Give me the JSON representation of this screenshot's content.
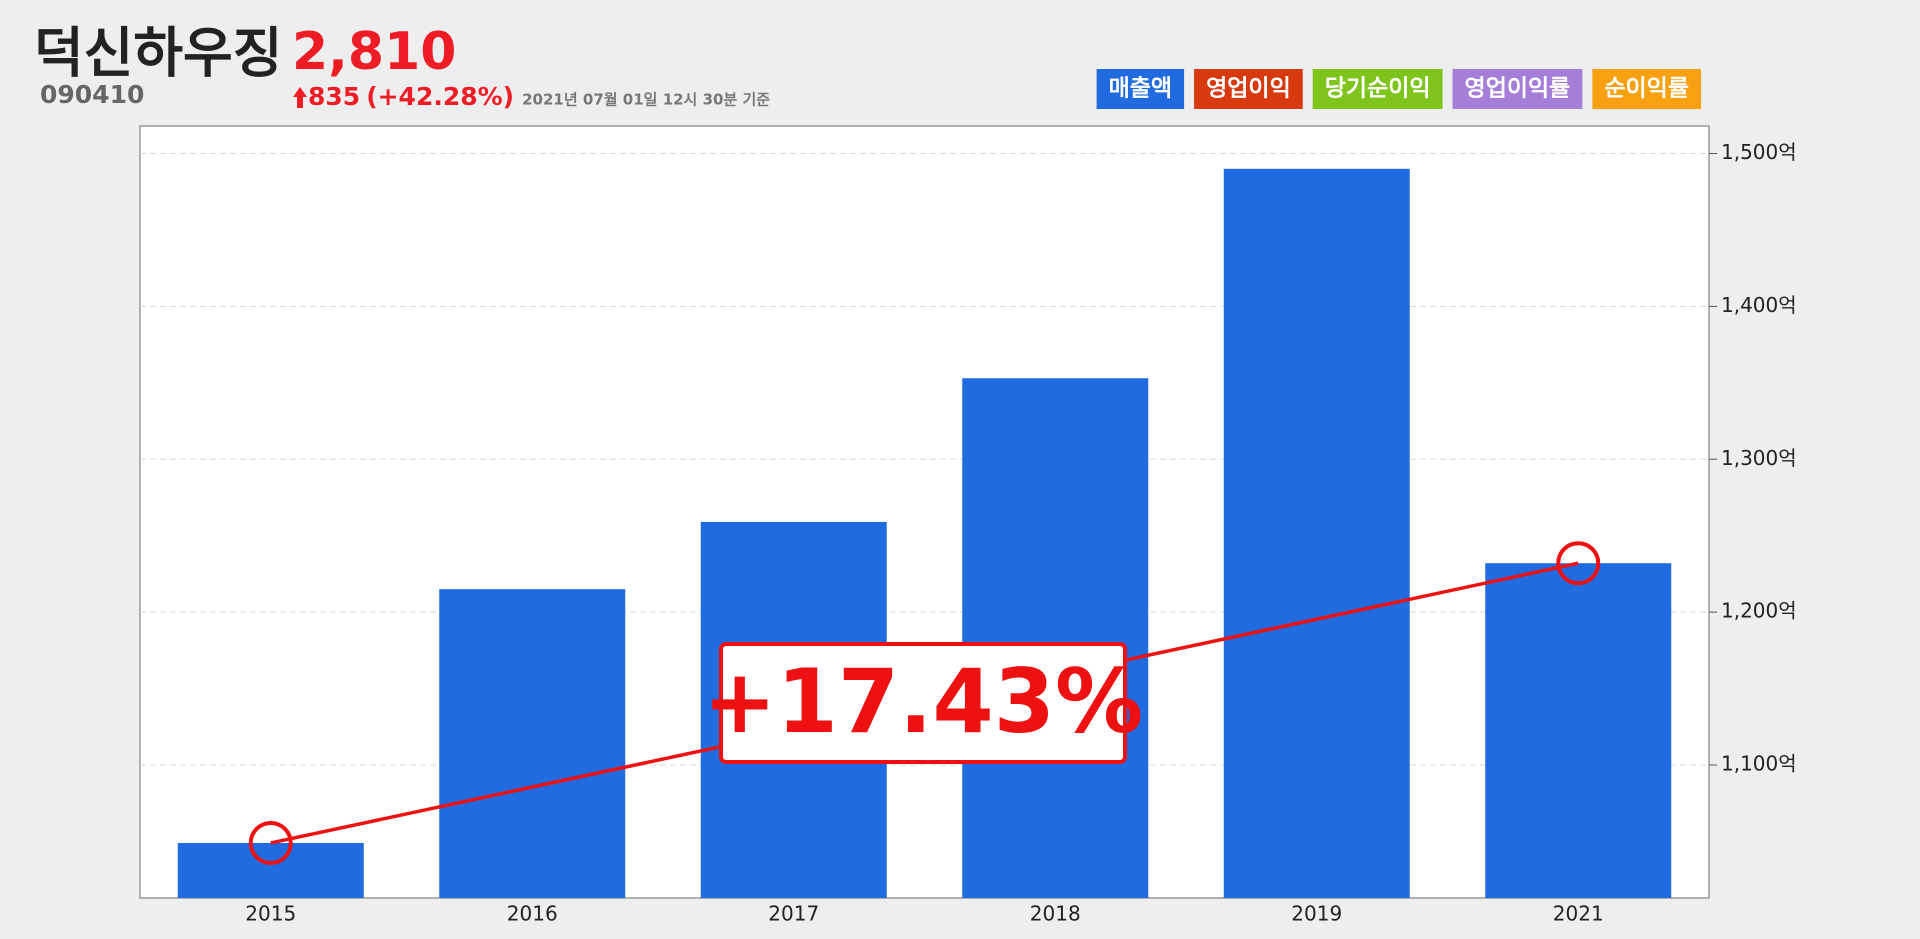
{
  "header": {
    "name": "덕신하우징",
    "price": "2,810",
    "code": "090410",
    "change": "835",
    "change_rate": "(+42.28%)",
    "timestamp": "2021년 07월 01일 12시 30분 기준"
  },
  "legend": [
    {
      "name": "매출액",
      "color": "#206be0"
    },
    {
      "name": "영업이익",
      "color": "#d83a10"
    },
    {
      "name": "당기순이익",
      "color": "#7ec41a"
    },
    {
      "name": "영업이익률",
      "color": "#a57ed8"
    },
    {
      "name": "순이익률",
      "color": "#f7a010"
    }
  ],
  "chart_data": {
    "type": "bar",
    "categories": [
      "2015",
      "2016",
      "2017",
      "2018",
      "2019",
      "2021"
    ],
    "series": [
      {
        "name": "매출액",
        "color": "#206be0",
        "values": [
          1049,
          1215,
          1259,
          1353,
          1490,
          1232
        ]
      }
    ],
    "ylim": [
      1013,
      1518
    ],
    "yticks": [
      {
        "value": 1100,
        "label": "1,100억"
      },
      {
        "value": 1200,
        "label": "1,200억"
      },
      {
        "value": 1300,
        "label": "1,300억"
      },
      {
        "value": 1400,
        "label": "1,400억"
      },
      {
        "value": 1500,
        "label": "1,500억"
      }
    ],
    "grid": true,
    "annotation": "+17.43%",
    "trend_color": "#ee1111"
  }
}
